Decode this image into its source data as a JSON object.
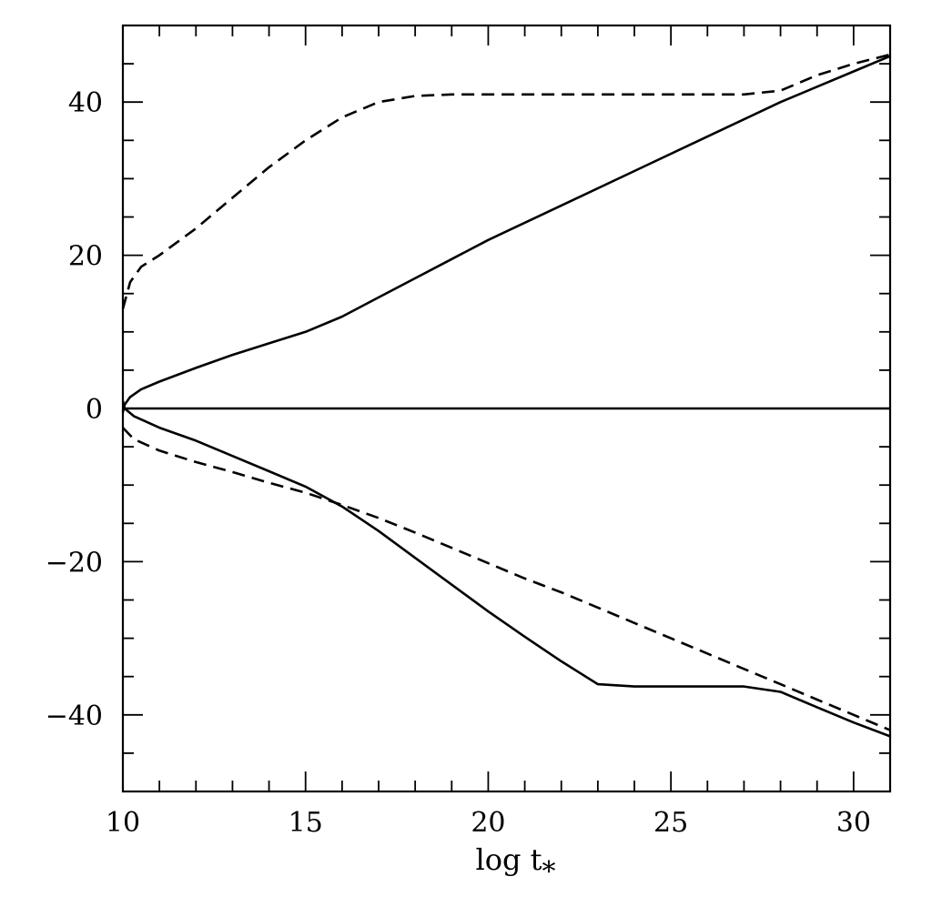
{
  "chart_data": {
    "type": "line",
    "title": "",
    "xlabel": "log t",
    "xlabel_subscript": "*",
    "ylabel": "",
    "xlim": [
      10,
      31
    ],
    "ylim": [
      -50,
      50
    ],
    "x_ticks": [
      10,
      15,
      20,
      25,
      30
    ],
    "y_ticks": [
      -40,
      -20,
      0,
      20,
      40
    ],
    "x_tick_labels": [
      "10",
      "15",
      "20",
      "25",
      "30"
    ],
    "y_tick_labels": [
      "−40",
      "−20",
      "0",
      "20",
      "40"
    ],
    "grid": false,
    "legend": "none",
    "series": [
      {
        "style": "solid",
        "color": "#000000",
        "points": [
          [
            10.0,
            -0.5
          ],
          [
            10.05,
            0.5
          ],
          [
            10.2,
            1.5
          ],
          [
            10.5,
            2.5
          ],
          [
            11,
            3.5
          ],
          [
            12,
            5.3
          ],
          [
            13,
            7.0
          ],
          [
            14,
            8.5
          ],
          [
            15,
            10.0
          ],
          [
            16,
            12.0
          ],
          [
            17,
            14.5
          ],
          [
            18,
            17.0
          ],
          [
            19,
            19.5
          ],
          [
            20,
            22.0
          ],
          [
            22,
            26.5
          ],
          [
            24,
            31.0
          ],
          [
            26,
            35.5
          ],
          [
            28,
            40.0
          ],
          [
            30,
            44.0
          ],
          [
            31,
            46.0
          ]
        ]
      },
      {
        "style": "dashed",
        "color": "#000000",
        "points": [
          [
            10.0,
            13.0
          ],
          [
            10.2,
            16.5
          ],
          [
            10.5,
            18.5
          ],
          [
            11,
            20.0
          ],
          [
            12,
            23.5
          ],
          [
            13,
            27.5
          ],
          [
            14,
            31.5
          ],
          [
            15,
            35.0
          ],
          [
            16,
            38.0
          ],
          [
            17,
            40.0
          ],
          [
            18,
            40.8
          ],
          [
            19,
            41.0
          ],
          [
            22,
            41.0
          ],
          [
            25,
            41.0
          ],
          [
            27,
            41.0
          ],
          [
            28,
            41.5
          ],
          [
            29,
            43.5
          ],
          [
            30,
            45.0
          ],
          [
            31,
            46.2
          ]
        ]
      },
      {
        "style": "solid",
        "color": "#000000",
        "points": [
          [
            10.0,
            1.0
          ],
          [
            10.05,
            0.0
          ],
          [
            10.3,
            -1.0
          ],
          [
            11,
            -2.5
          ],
          [
            12,
            -4.2
          ],
          [
            13,
            -6.2
          ],
          [
            14,
            -8.2
          ],
          [
            15,
            -10.2
          ],
          [
            16,
            -12.8
          ],
          [
            17,
            -16.0
          ],
          [
            18,
            -19.5
          ],
          [
            19,
            -23.0
          ],
          [
            20,
            -26.5
          ],
          [
            21,
            -29.8
          ],
          [
            22,
            -33.0
          ],
          [
            23,
            -36.0
          ],
          [
            24,
            -36.3
          ],
          [
            25,
            -36.3
          ],
          [
            27,
            -36.3
          ],
          [
            28,
            -37.0
          ],
          [
            29,
            -39.0
          ],
          [
            30,
            -41.0
          ],
          [
            31,
            -42.8
          ]
        ]
      },
      {
        "style": "dashed",
        "color": "#000000",
        "points": [
          [
            10.0,
            -2.5
          ],
          [
            10.3,
            -4.0
          ],
          [
            11,
            -5.5
          ],
          [
            12,
            -7.0
          ],
          [
            13,
            -8.3
          ],
          [
            14,
            -9.7
          ],
          [
            15,
            -11.0
          ],
          [
            16,
            -12.6
          ],
          [
            17,
            -14.3
          ],
          [
            18,
            -16.2
          ],
          [
            19,
            -18.2
          ],
          [
            20,
            -20.2
          ],
          [
            21,
            -22.2
          ],
          [
            22,
            -24.0
          ],
          [
            23,
            -26.0
          ],
          [
            24,
            -28.0
          ],
          [
            25,
            -30.0
          ],
          [
            26,
            -32.0
          ],
          [
            27,
            -34.0
          ],
          [
            28,
            -36.0
          ],
          [
            29,
            -38.0
          ],
          [
            30,
            -40.0
          ],
          [
            31,
            -42.0
          ]
        ]
      },
      {
        "style": "solid",
        "color": "#000000",
        "points": [
          [
            10,
            0
          ],
          [
            31,
            0
          ]
        ]
      }
    ]
  }
}
